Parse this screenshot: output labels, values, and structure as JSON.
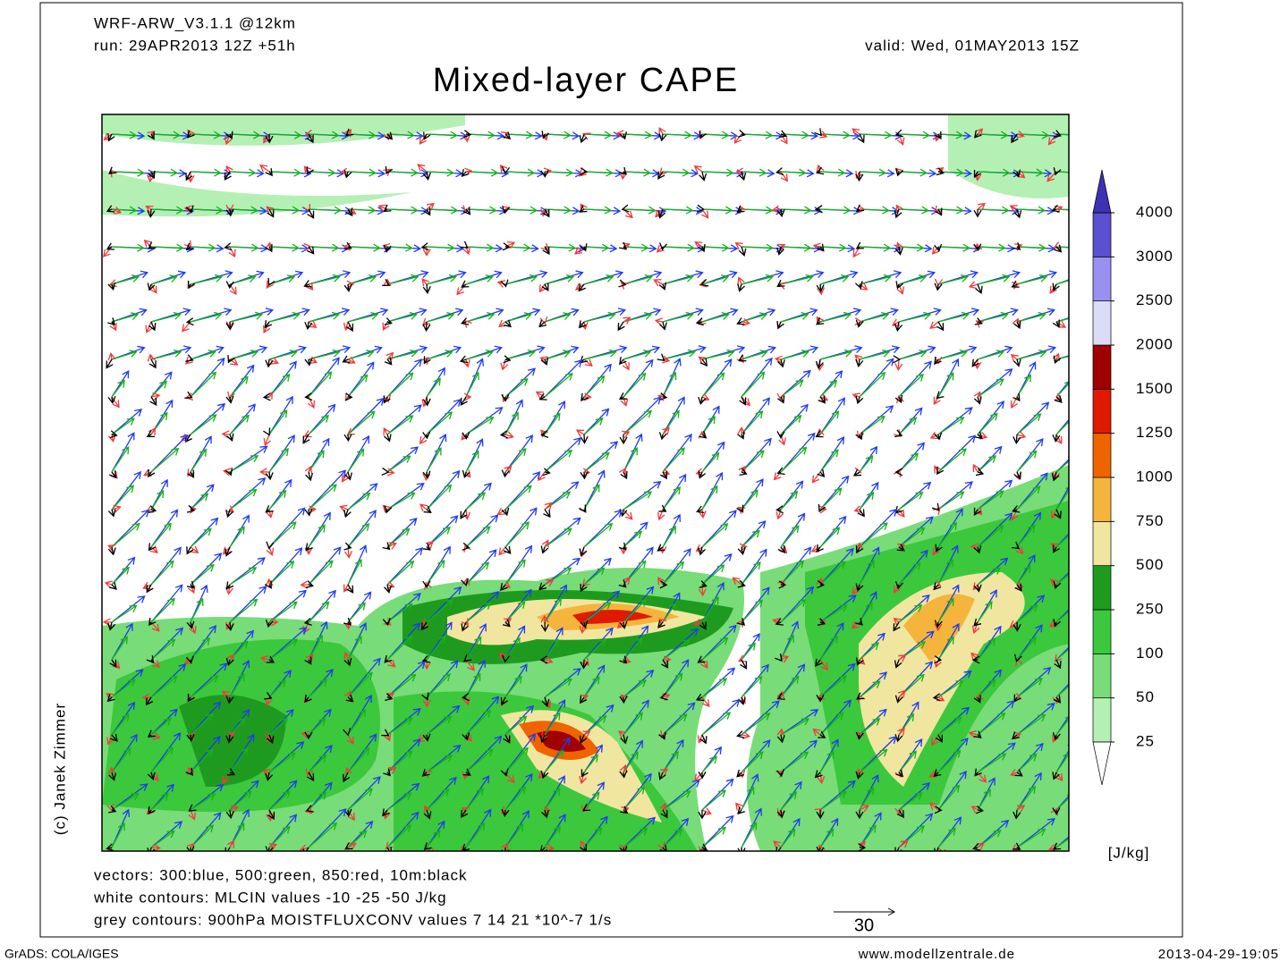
{
  "header": {
    "model": "WRF-ARW_V3.1.1 @12km",
    "run": "run: 29APR2013 12Z +51h",
    "valid": "valid: Wed, 01MAY2013 15Z",
    "title": "Mixed-layer CAPE"
  },
  "colorbar": {
    "levels": [
      25,
      50,
      100,
      250,
      500,
      750,
      1000,
      1250,
      1500,
      2000,
      2500,
      3000,
      4000
    ],
    "colors": [
      "#b4f0b4",
      "#78dc78",
      "#3cc83c",
      "#1e9b1e",
      "#f0e6a0",
      "#f5b43c",
      "#f06400",
      "#e01a00",
      "#a00000",
      "#dcdcf8",
      "#9b8ff0",
      "#5a50d0"
    ],
    "above_color": "#3c32b4",
    "unit": "[J/kg]"
  },
  "notes": [
    "vectors: 300:blue, 500:green, 850:red, 10m:black",
    "white contours: MLCIN values -10 -25 -50 J/kg",
    "grey contours: 900hPa MOISTFLUXCONV values 7 14 21 *10^-7 1/s"
  ],
  "scale_vector": "30",
  "author": "(c) Janek Zimmer",
  "footer": {
    "software": "GrADS: COLA/IGES",
    "site": "www.modellzentrale.de",
    "date": "2013-04-29-19:05"
  }
}
